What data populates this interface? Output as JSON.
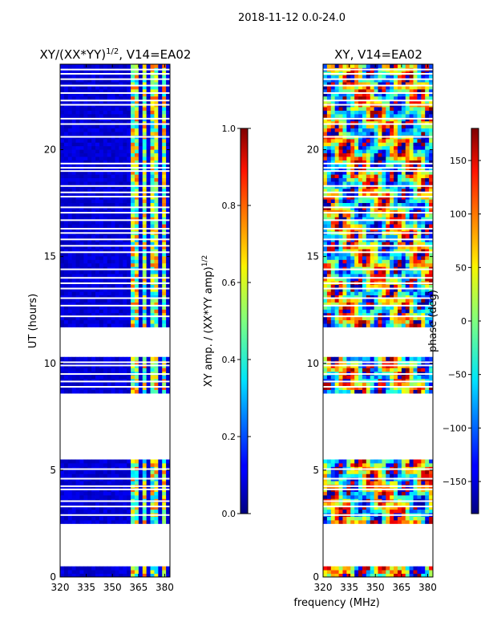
{
  "suptitle": "2018-11-12 0.0-24.0",
  "chart_data": [
    {
      "type": "heatmap",
      "title_main": "XY/(XX*YY)",
      "title_sup": "1/2",
      "title_tail": ", V14=EA02",
      "ylabel": "UT (hours)",
      "xlim": [
        320,
        383
      ],
      "ylim": [
        0,
        24
      ],
      "xticks": [
        320,
        335,
        350,
        365,
        380
      ],
      "yticks": [
        0,
        5,
        10,
        15,
        20
      ],
      "colorbar": {
        "label_main": "XY amp. / (XX*YY amp)",
        "label_sup": "1/2",
        "range": [
          0.0,
          1.0
        ],
        "ticks": [
          "0.0",
          "0.2",
          "0.4",
          "0.6",
          "0.8",
          "1.0"
        ]
      },
      "bright_bands_mhz": [
        [
          361,
          366
        ],
        [
          367,
          370
        ],
        [
          372,
          374
        ],
        [
          375,
          377
        ],
        [
          378,
          380
        ]
      ]
    },
    {
      "type": "heatmap",
      "title": "XY, V14=EA02",
      "xlim": [
        320,
        383
      ],
      "ylim": [
        0,
        24
      ],
      "xticks": [
        320,
        335,
        350,
        365,
        380
      ],
      "yticks": [
        0,
        5,
        10,
        15,
        20
      ],
      "colorbar": {
        "label": "phase (deg)",
        "range": [
          -180,
          180
        ],
        "ticks": [
          "-150",
          "-100",
          "-50",
          "0",
          "50",
          "100",
          "150"
        ]
      }
    }
  ],
  "shared_xlabel": "frequency (MHz)",
  "data_segments_ut": [
    [
      0.0,
      0.5
    ],
    [
      2.5,
      5.5
    ],
    [
      8.6,
      10.3
    ],
    [
      11.7,
      24.0
    ]
  ],
  "gap_lines_ut": [
    2.9,
    3.3,
    3.55,
    4.1,
    4.25,
    4.6,
    5.05,
    8.9,
    9.15,
    9.5,
    9.9,
    10.05,
    12.2,
    12.7,
    13.05,
    13.5,
    13.75,
    14.0,
    14.4,
    15.2,
    15.5,
    15.8,
    16.1,
    16.3,
    16.7,
    17.05,
    17.3,
    17.8,
    18.0,
    18.3,
    19.0,
    19.15,
    19.35,
    20.6,
    21.2,
    21.45,
    22.1,
    22.3,
    22.65,
    23.0,
    23.3,
    23.55,
    23.75
  ]
}
